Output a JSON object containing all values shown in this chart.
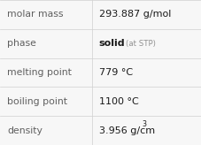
{
  "rows": [
    {
      "label": "molar mass",
      "value": "293.887 g/mol",
      "value_suffix": null,
      "suffix_small": null,
      "value_super": null,
      "bold_value": false
    },
    {
      "label": "phase",
      "value": "solid",
      "value_suffix": " (at STP)",
      "suffix_small": true,
      "value_super": null,
      "bold_value": true
    },
    {
      "label": "melting point",
      "value": "779 °C",
      "value_suffix": null,
      "suffix_small": null,
      "value_super": null,
      "bold_value": false
    },
    {
      "label": "boiling point",
      "value": "1100 °C",
      "value_suffix": null,
      "suffix_small": null,
      "value_super": null,
      "bold_value": false
    },
    {
      "label": "density",
      "value": "3.956 g/cm",
      "value_suffix": null,
      "suffix_small": null,
      "value_super": "3",
      "bold_value": false
    }
  ],
  "col_split": 0.455,
  "bg_color": "#f7f7f7",
  "grid_color": "#d0d0d0",
  "label_color": "#606060",
  "value_color": "#1a1a1a",
  "suffix_color": "#909090",
  "label_fontsize": 7.8,
  "value_fontsize": 8.0,
  "suffix_fontsize": 6.2,
  "super_fontsize": 5.8
}
